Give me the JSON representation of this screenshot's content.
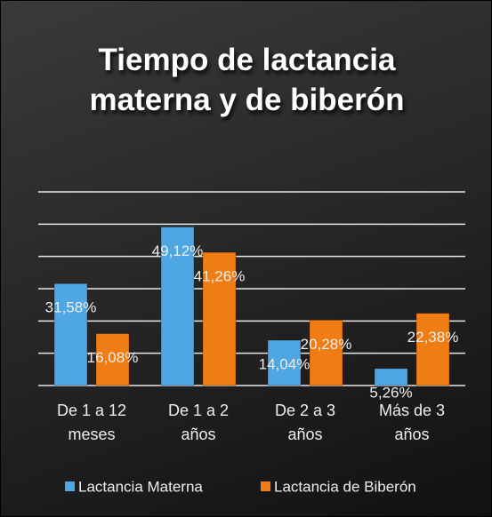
{
  "chart_data": {
    "type": "bar",
    "title": "Tiempo de lactancia materna y de biberón",
    "categories": [
      "De 1 a 12 meses",
      "De 1 a 2 años",
      "De 2 a 3 años",
      "Más de 3 años"
    ],
    "series": [
      {
        "name": "Lactancia Materna",
        "color": "#4ea6e2",
        "values": [
          31.58,
          49.12,
          14.04,
          5.26
        ],
        "value_labels": [
          "31,58%",
          "49,12%",
          "14,04%",
          "5,26%"
        ]
      },
      {
        "name": "Lactancia de Biberón",
        "color": "#f07d14",
        "values": [
          16.08,
          41.26,
          20.28,
          22.38
        ],
        "value_labels": [
          "16,08%",
          "41,26%",
          "20,28%",
          "22,38%"
        ]
      }
    ],
    "ylim": [
      0,
      60
    ],
    "yticks": [
      0,
      10,
      20,
      30,
      40,
      50,
      60
    ],
    "grid": true
  }
}
